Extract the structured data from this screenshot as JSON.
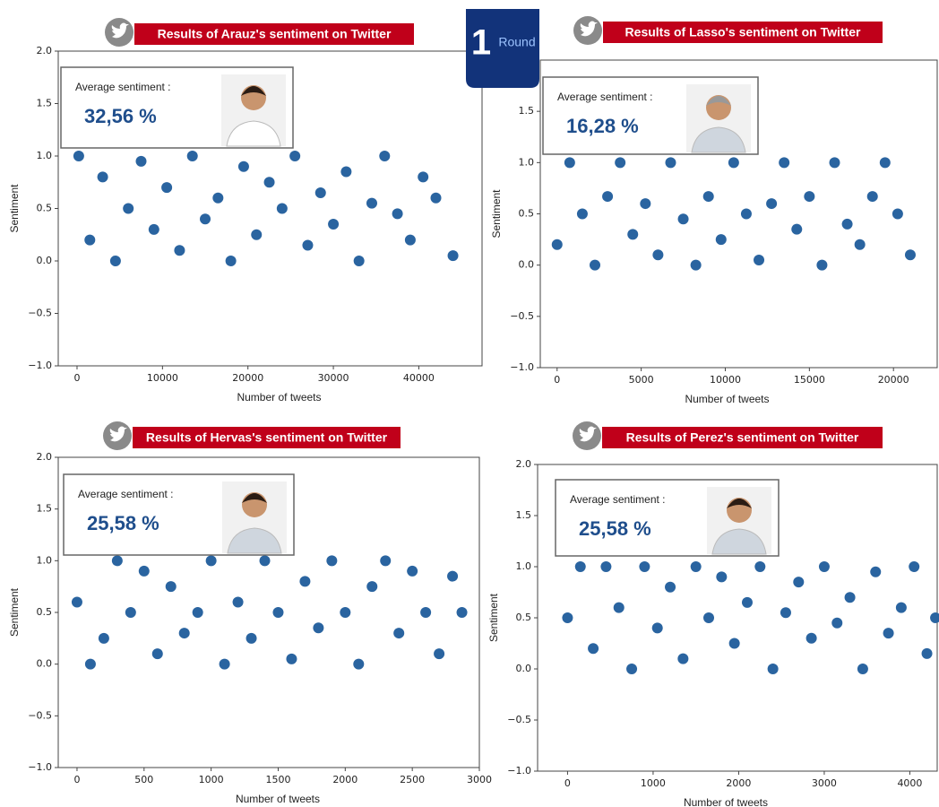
{
  "badge": {
    "number": "1",
    "text": "Round"
  },
  "chart_data": [
    {
      "type": "scatter",
      "title": "Results of Arauz's sentiment on Twitter",
      "xlabel": "Number of tweets",
      "ylabel": "Sentiment",
      "average_label": "Average sentiment :",
      "average": "32,56 %",
      "color": "#2a64a0",
      "x": [
        200,
        1500,
        3000,
        4500,
        6000,
        7500,
        9000,
        10500,
        12000,
        13500,
        15000,
        16500,
        18000,
        19500,
        21000,
        22500,
        24000,
        25500,
        27000,
        28500,
        30000,
        31500,
        33000,
        34500,
        36000,
        37500,
        39000,
        40500,
        42000,
        44000
      ],
      "values": [
        1,
        0.2,
        0.8,
        0,
        0.5,
        0.95,
        0.3,
        0.7,
        0.1,
        1,
        0.4,
        0.6,
        0,
        0.9,
        0.25,
        0.75,
        0.5,
        1,
        0.15,
        0.65,
        0.35,
        0.85,
        0,
        0.55,
        1,
        0.45,
        0.2,
        0.8,
        0.6,
        0.05
      ],
      "xlim": [
        -2200,
        47400
      ],
      "xticks": [
        0,
        10000,
        20000,
        30000,
        40000
      ],
      "ylim": [
        -1,
        2
      ],
      "yticks": [
        {
          "value": -1,
          "label": "−1.0"
        },
        {
          "value": -0.5,
          "label": "−0.5"
        },
        {
          "value": 0,
          "label": "0.0"
        },
        {
          "value": 0.5,
          "label": "0.5"
        },
        {
          "value": 1,
          "label": "1.0"
        },
        {
          "value": 1.5,
          "label": "1.5"
        },
        {
          "value": 2,
          "label": "2.0"
        }
      ]
    },
    {
      "type": "scatter",
      "title": "Results of Lasso's sentiment on Twitter",
      "xlabel": "Number of tweets",
      "ylabel": "Sentiment",
      "average_label": "Average sentiment :",
      "average": "16,28 %",
      "color": "#2a64a0",
      "x": [
        0,
        750,
        1500,
        2250,
        3000,
        3750,
        4500,
        5250,
        6000,
        6750,
        7500,
        8250,
        9000,
        9750,
        10500,
        11250,
        12000,
        12750,
        13500,
        14250,
        15000,
        15750,
        16500,
        17250,
        18000,
        18750,
        19500,
        20250,
        21000
      ],
      "values": [
        0.2,
        1,
        0.5,
        0,
        0.67,
        1,
        0.3,
        0.6,
        0.1,
        1,
        0.45,
        0,
        0.67,
        0.25,
        1,
        0.5,
        0.05,
        0.6,
        1,
        0.35,
        0.67,
        0,
        1,
        0.4,
        0.2,
        0.67,
        1,
        0.5,
        0.1
      ],
      "xlim": [
        -1000,
        22600
      ],
      "xticks": [
        0,
        5000,
        10000,
        15000,
        20000
      ],
      "ylim": [
        -1,
        2
      ],
      "yticks": [
        {
          "value": -1,
          "label": "−1.0"
        },
        {
          "value": -0.5,
          "label": "−0.5"
        },
        {
          "value": 0,
          "label": "0.0"
        },
        {
          "value": 0.5,
          "label": "0.5"
        },
        {
          "value": 1,
          "label": "1.0"
        },
        {
          "value": 1.5,
          "label": "1.5"
        }
      ]
    },
    {
      "type": "scatter",
      "title": "Results of Hervas's sentiment on Twitter",
      "xlabel": "Number of tweets",
      "ylabel": "Sentiment",
      "average_label": "Average sentiment :",
      "average": "25,58 %",
      "color": "#2a64a0",
      "x": [
        0,
        100,
        200,
        300,
        400,
        500,
        600,
        700,
        800,
        900,
        1000,
        1100,
        1200,
        1300,
        1400,
        1500,
        1600,
        1700,
        1800,
        1900,
        2000,
        2100,
        2200,
        2300,
        2400,
        2500,
        2600,
        2700,
        2800,
        2870
      ],
      "values": [
        0.6,
        0,
        0.25,
        1,
        0.5,
        0.9,
        0.1,
        0.75,
        0.3,
        0.5,
        1,
        0,
        0.6,
        0.25,
        1,
        0.5,
        0.05,
        0.8,
        0.35,
        1,
        0.5,
        0,
        0.75,
        1,
        0.3,
        0.9,
        0.5,
        0.1,
        0.85,
        0.5
      ],
      "xlim": [
        -140,
        3000
      ],
      "xticks": [
        0,
        500,
        1000,
        1500,
        2000,
        2500,
        3000
      ],
      "ylim": [
        -1,
        2
      ],
      "yticks": [
        {
          "value": -1,
          "label": "−1.0"
        },
        {
          "value": -0.5,
          "label": "−0.5"
        },
        {
          "value": 0,
          "label": "0.0"
        },
        {
          "value": 0.5,
          "label": "0.5"
        },
        {
          "value": 1,
          "label": "1.0"
        },
        {
          "value": 1.5,
          "label": "1.5"
        },
        {
          "value": 2,
          "label": "2.0"
        }
      ]
    },
    {
      "type": "scatter",
      "title": "Results of Perez's sentiment on Twitter",
      "xlabel": "Number of tweets",
      "ylabel": "Sentiment",
      "average_label": "Average sentiment :",
      "average": "25,58 %",
      "color": "#2a64a0",
      "x": [
        0,
        150,
        300,
        450,
        600,
        750,
        900,
        1050,
        1200,
        1350,
        1500,
        1650,
        1800,
        1950,
        2100,
        2250,
        2400,
        2550,
        2700,
        2850,
        3000,
        3150,
        3300,
        3450,
        3600,
        3750,
        3900,
        4050,
        4200,
        4300
      ],
      "values": [
        0.5,
        1,
        0.2,
        1,
        0.6,
        0,
        1,
        0.4,
        0.8,
        0.1,
        1,
        0.5,
        0.9,
        0.25,
        0.65,
        1,
        0,
        0.55,
        0.85,
        0.3,
        1,
        0.45,
        0.7,
        0,
        0.95,
        0.35,
        0.6,
        1,
        0.15,
        0.5
      ],
      "xlim": [
        -350,
        4320
      ],
      "xticks": [
        0,
        1000,
        2000,
        3000,
        4000
      ],
      "ylim": [
        -1,
        2
      ],
      "yticks": [
        {
          "value": -1,
          "label": "−1.0"
        },
        {
          "value": -0.5,
          "label": "−0.5"
        },
        {
          "value": 0,
          "label": "0.0"
        },
        {
          "value": 0.5,
          "label": "0.5"
        },
        {
          "value": 1,
          "label": "1.0"
        },
        {
          "value": 1.5,
          "label": "1.5"
        },
        {
          "value": 2,
          "label": "2.0"
        }
      ]
    }
  ]
}
